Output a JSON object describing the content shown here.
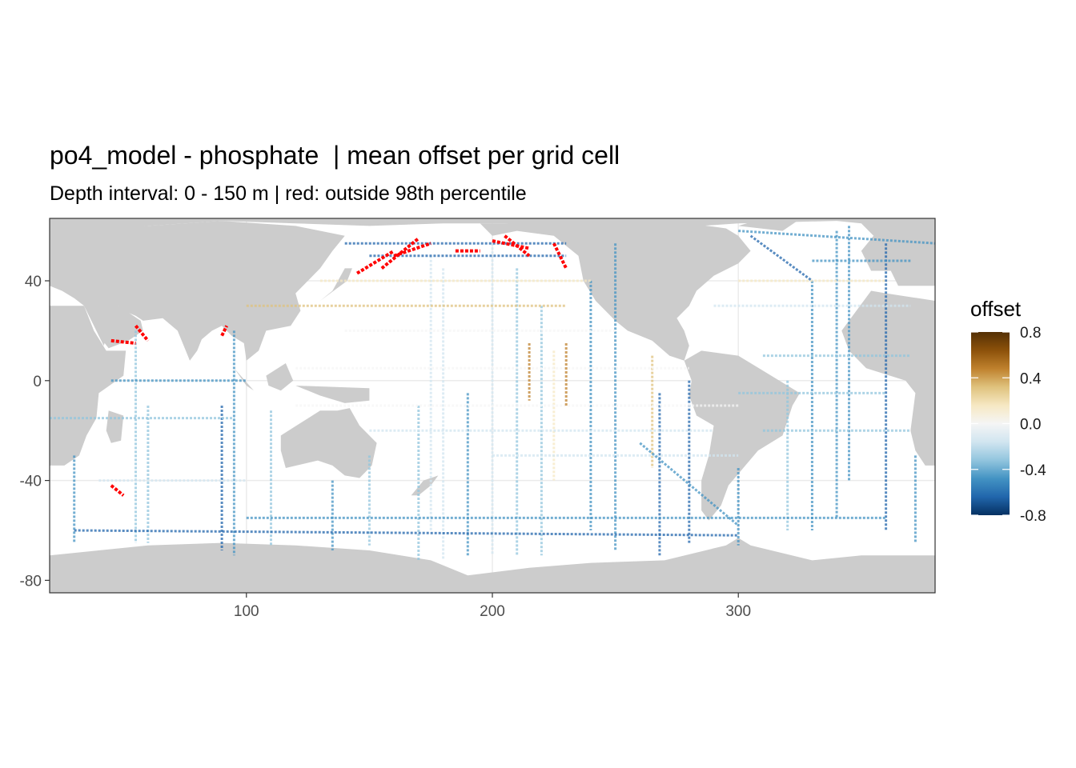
{
  "title": "po4_model - phosphate  | mean offset per grid cell",
  "subtitle": "Depth interval: 0 - 150 m | red: outside 98th percentile",
  "chart_data": {
    "type": "heatmap",
    "x_ticks": [
      100,
      200,
      300
    ],
    "y_ticks": [
      40,
      0,
      -40,
      -80
    ],
    "xlim": [
      20,
      380
    ],
    "ylim": [
      -85,
      65
    ],
    "legend": {
      "title": "offset",
      "breaks": [
        0.8,
        0.4,
        0.0,
        -0.4,
        -0.8
      ],
      "break_labels": [
        "0.8",
        "0.4",
        "0.0",
        "-0.4",
        "-0.8"
      ],
      "limits": [
        -0.8,
        0.8
      ],
      "colors_high_to_low": [
        "#543005",
        "#8c510a",
        "#bf812d",
        "#dfc27d",
        "#f6e8c3",
        "#f5f5f5",
        "#d1e5f0",
        "#92c5de",
        "#4393c3",
        "#2166ac",
        "#053061"
      ],
      "outlier_color": "#ff0000",
      "outlier_note": "red: outside 98th percentile"
    },
    "colors": {
      "land": "#cccccc",
      "ocean": "#ffffff",
      "grid": "#ebebeb"
    }
  }
}
